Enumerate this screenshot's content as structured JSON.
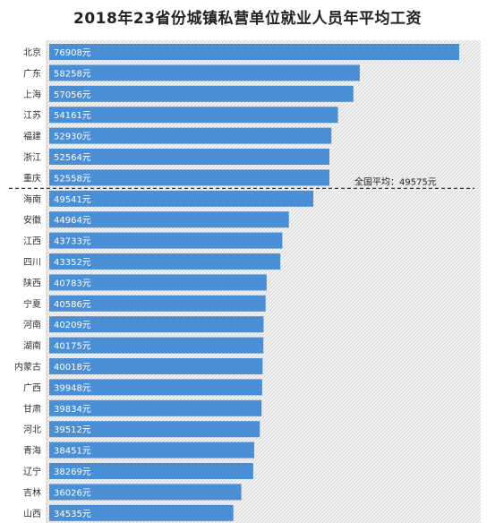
{
  "chart_data": {
    "type": "bar",
    "orientation": "horizontal",
    "title": "2018年23省份城镇私营单位就业人员年平均工资",
    "unit_suffix": "元",
    "categories": [
      "北京",
      "广东",
      "上海",
      "江苏",
      "福建",
      "浙江",
      "重庆",
      "海南",
      "安徽",
      "江西",
      "四川",
      "陕西",
      "宁夏",
      "河南",
      "湖南",
      "内蒙古",
      "广西",
      "甘肃",
      "河北",
      "青海",
      "辽宁",
      "吉林",
      "山西"
    ],
    "values": [
      76908,
      58258,
      57056,
      54161,
      52930,
      52564,
      52558,
      49541,
      44964,
      43733,
      43352,
      40783,
      40586,
      40209,
      40175,
      40018,
      39948,
      39834,
      39512,
      38451,
      38269,
      36026,
      34535
    ],
    "value_labels": [
      "76908元",
      "58258元",
      "57056元",
      "54161元",
      "52930元",
      "52564元",
      "52558元",
      "49541元",
      "44964元",
      "43733元",
      "43352元",
      "40783元",
      "40586元",
      "40209元",
      "40175元",
      "40018元",
      "39948元",
      "39834元",
      "39512元",
      "38451元",
      "38269元",
      "36026元",
      "34535元"
    ],
    "average": {
      "label": "全国平均：49575元",
      "value": 49575,
      "after_category": "重庆"
    },
    "bar_color": "#4a8ed6",
    "background_pattern": "diagonal-hatch-gray"
  }
}
